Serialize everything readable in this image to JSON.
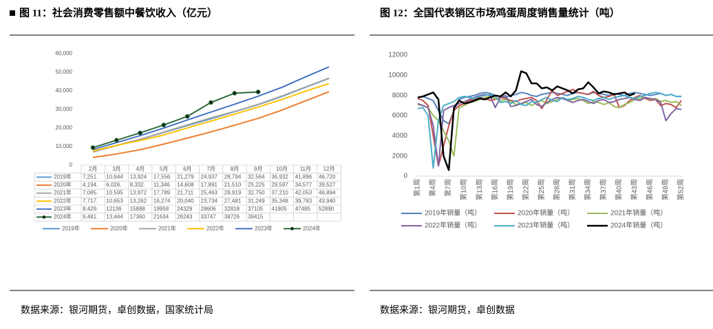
{
  "chart_data": [
    {
      "type": "line",
      "title": "图 11：社会消费零售额中餐饮收入（亿元）",
      "source": "数据来源：银河期货，卓创数据，国家统计局",
      "categories": [
        "2月",
        "3月",
        "4月",
        "5月",
        "6月",
        "7月",
        "8月",
        "9月",
        "10月",
        "11月",
        "12月"
      ],
      "ylim": [
        0,
        60000
      ],
      "yticks": [
        0,
        {
          "value": 10000,
          "label": "10,000"
        },
        {
          "value": 20000,
          "label": "20,000"
        },
        {
          "value": 30000,
          "label": "30,000"
        },
        {
          "value": 40000,
          "label": "40,000"
        },
        {
          "value": 50000,
          "label": "50,000"
        },
        {
          "value": 60000,
          "label": "60,000"
        }
      ],
      "table": true,
      "series": [
        {
          "name": "2019年",
          "color": "#5b9bd5",
          "values": [
            7251,
            10644,
            13924,
            17556,
            21279,
            24937,
            28794,
            32564,
            36932,
            41896,
            46720
          ],
          "value_labels": [
            "7,251.",
            "10,644",
            "13,924",
            "17,556",
            "21,279",
            "24,937",
            "28,794",
            "32,564",
            "36,932",
            "41,896",
            "46,720"
          ]
        },
        {
          "name": "2020年",
          "color": "#ed7d31",
          "values": [
            4194,
            6026,
            8332,
            11346,
            14608,
            17891,
            21510,
            25225,
            29597,
            34577,
            39527
          ],
          "value_labels": [
            "4,194.",
            "6,026.",
            "8,332.",
            "11,346",
            "14,608",
            "17,891",
            "21,510",
            "25,225",
            "29,597",
            "34,577",
            "39,527"
          ]
        },
        {
          "name": "2021年",
          "color": "#a5a5a5",
          "values": [
            7085,
            10595,
            13972,
            17789,
            21711,
            25463,
            28919,
            32750,
            37210,
            42053,
            46894
          ],
          "value_labels": [
            "7,085.",
            "10,595",
            "13,972",
            "17,789",
            "21,711",
            "25,463",
            "28,919",
            "32,750",
            "37,210",
            "42,053",
            "46,894"
          ]
        },
        {
          "name": "2022年",
          "color": "#ffc000",
          "values": [
            7717,
            10653,
            13262,
            16274,
            20040,
            23734,
            27481,
            31249,
            35348,
            39783,
            43940
          ],
          "value_labels": [
            "7,717.",
            "10,653",
            "13,262",
            "16,274",
            "20,040",
            "23,734",
            "27,481",
            "31,249",
            "35,348",
            "39,783",
            "43,940"
          ]
        },
        {
          "name": "2023年",
          "color": "#4472c4",
          "values": [
            8429,
            12136,
            15888,
            19958,
            24329,
            28606,
            32818,
            37105,
            41905,
            47485,
            52890
          ],
          "value_labels": [
            "8,429.",
            "12136",
            "15888",
            "19958",
            "24329",
            "28606",
            "32818",
            "37105",
            "41905",
            "47485",
            "52890"
          ]
        },
        {
          "name": "2024年",
          "color": "#2e6b3a",
          "marker": true,
          "values": [
            9481,
            13444,
            17360,
            21634,
            26243,
            33747,
            38726,
            39415,
            null,
            null,
            null
          ],
          "value_labels": [
            "9,481.",
            "13,444",
            "17360",
            "21634",
            "26243",
            "33747",
            "38726",
            "39415",
            null,
            null,
            null
          ]
        }
      ]
    },
    {
      "type": "line",
      "title": "图 12：全国代表销区市场鸡蛋周度销售量统计（吨）",
      "source": "数据来源：银河期货，卓创数据",
      "categories": [
        "第1周",
        null,
        null,
        "第4周",
        null,
        null,
        "第7周",
        null,
        null,
        "第10周",
        null,
        null,
        "第13周",
        null,
        null,
        "第16周",
        null,
        null,
        "第19周",
        null,
        null,
        "第22周",
        null,
        null,
        "第25周",
        null,
        null,
        "第28周",
        null,
        null,
        "第31周",
        null,
        null,
        "第34周",
        null,
        null,
        "第37周",
        null,
        null,
        "第40周",
        null,
        null,
        "第43周",
        null,
        null,
        "第46周",
        null,
        null,
        "第49周",
        null,
        null,
        "第52周"
      ],
      "ylim": [
        0,
        12000
      ],
      "yticks": [
        0,
        2000,
        4000,
        6000,
        8000,
        10000,
        12000
      ],
      "series": [
        {
          "name": "2019年销量（吨）",
          "color": "#4f81bd",
          "values": [
            7800,
            7900,
            7700,
            7500,
            6500,
            5500,
            5200,
            6500,
            7600,
            7800,
            7900,
            8000,
            8200,
            8300,
            8200,
            8000,
            7900,
            7800,
            8000,
            8100,
            8300,
            8200,
            8000,
            7900,
            8100,
            8200,
            8300,
            8200,
            8100,
            8000,
            8200,
            8300,
            8200,
            8100,
            8300,
            8200,
            8100,
            8000,
            8200,
            8100,
            8000,
            8200,
            8300,
            8200,
            8100,
            8000,
            8100,
            8200,
            8000,
            8100,
            7900,
            7900
          ]
        },
        {
          "name": "2020年销量（吨）",
          "color": "#c0504d",
          "values": [
            7700,
            7500,
            7000,
            4000,
            1000,
            3000,
            5000,
            6500,
            7000,
            7200,
            7500,
            7600,
            7800,
            7700,
            7500,
            7600,
            7800,
            7700,
            7500,
            7400,
            7600,
            7700,
            7800,
            7500,
            6700,
            7600,
            8500,
            8000,
            8200,
            8400,
            8600,
            8300,
            8200,
            8100,
            8400,
            8000,
            7800,
            7900,
            8100,
            6800,
            7000,
            7500,
            7800,
            8000,
            7700,
            7500,
            7600,
            7000,
            7200,
            7100,
            6800,
            7500
          ]
        },
        {
          "name": "2021年销量（吨）",
          "color": "#9bbb59",
          "values": [
            7100,
            7000,
            6800,
            6000,
            5500,
            4500,
            3500,
            2000,
            6800,
            7000,
            7300,
            7400,
            7600,
            7800,
            7900,
            7700,
            7500,
            7600,
            7400,
            7100,
            7200,
            7300,
            7000,
            7300,
            7500,
            7200,
            7400,
            7600,
            7800,
            7500,
            7600,
            7700,
            7500,
            7200,
            7400,
            7300,
            7100,
            7300,
            6900,
            6800,
            7100,
            7300,
            7600,
            7700,
            7800,
            7600,
            7700,
            7400,
            7500,
            7300,
            7400,
            7000
          ]
        },
        {
          "name": "2022年销量（吨）",
          "color": "#8064a2",
          "values": [
            7200,
            7000,
            6800,
            5000,
            1000,
            6500,
            6800,
            7000,
            7200,
            7400,
            7600,
            7800,
            8000,
            8100,
            8000,
            6800,
            7800,
            8000,
            6900,
            7000,
            7200,
            7400,
            7600,
            7100,
            6900,
            7300,
            7600,
            7800,
            7700,
            7500,
            7300,
            7500,
            7600,
            7400,
            7200,
            7500,
            7600,
            7300,
            7400,
            7600,
            7700,
            7800,
            7600,
            7500,
            7800,
            7700,
            7600,
            7300,
            5500,
            6200,
            6700,
            6600
          ]
        },
        {
          "name": "2023年销量（吨）",
          "color": "#4bacc6",
          "values": [
            6700,
            6800,
            6000,
            800,
            5500,
            7000,
            7200,
            7400,
            7800,
            7900,
            7800,
            7700,
            7900,
            8000,
            8100,
            7900,
            7300,
            7400,
            7200,
            7500,
            7100,
            7000,
            7400,
            7300,
            7600,
            7800,
            7500,
            7400,
            7800,
            7600,
            7700,
            7900,
            7800,
            7600,
            7500,
            7700,
            7800,
            7600,
            7800,
            7900,
            8000,
            7800,
            7700,
            7900,
            8000,
            8200,
            8300,
            8200,
            8000,
            8100,
            7900,
            7900
          ]
        },
        {
          "name": "2024年销量（吨）",
          "color": "#000000",
          "width": 2.5,
          "values": [
            7800,
            7900,
            8100,
            8300,
            7600,
            2000,
            600,
            6800,
            7500,
            7200,
            7300,
            7500,
            7700,
            7600,
            7800,
            8000,
            7900,
            8300,
            7900,
            8500,
            10400,
            10200,
            9200,
            9200,
            8700,
            8800,
            8500,
            8900,
            8700,
            8500,
            8200,
            8600,
            8700,
            9300,
            8800,
            8200,
            8400,
            8300,
            8100,
            8200,
            8300,
            8000,
            8200,
            null,
            null,
            null,
            null,
            null,
            null,
            null,
            null,
            null
          ]
        }
      ]
    }
  ]
}
